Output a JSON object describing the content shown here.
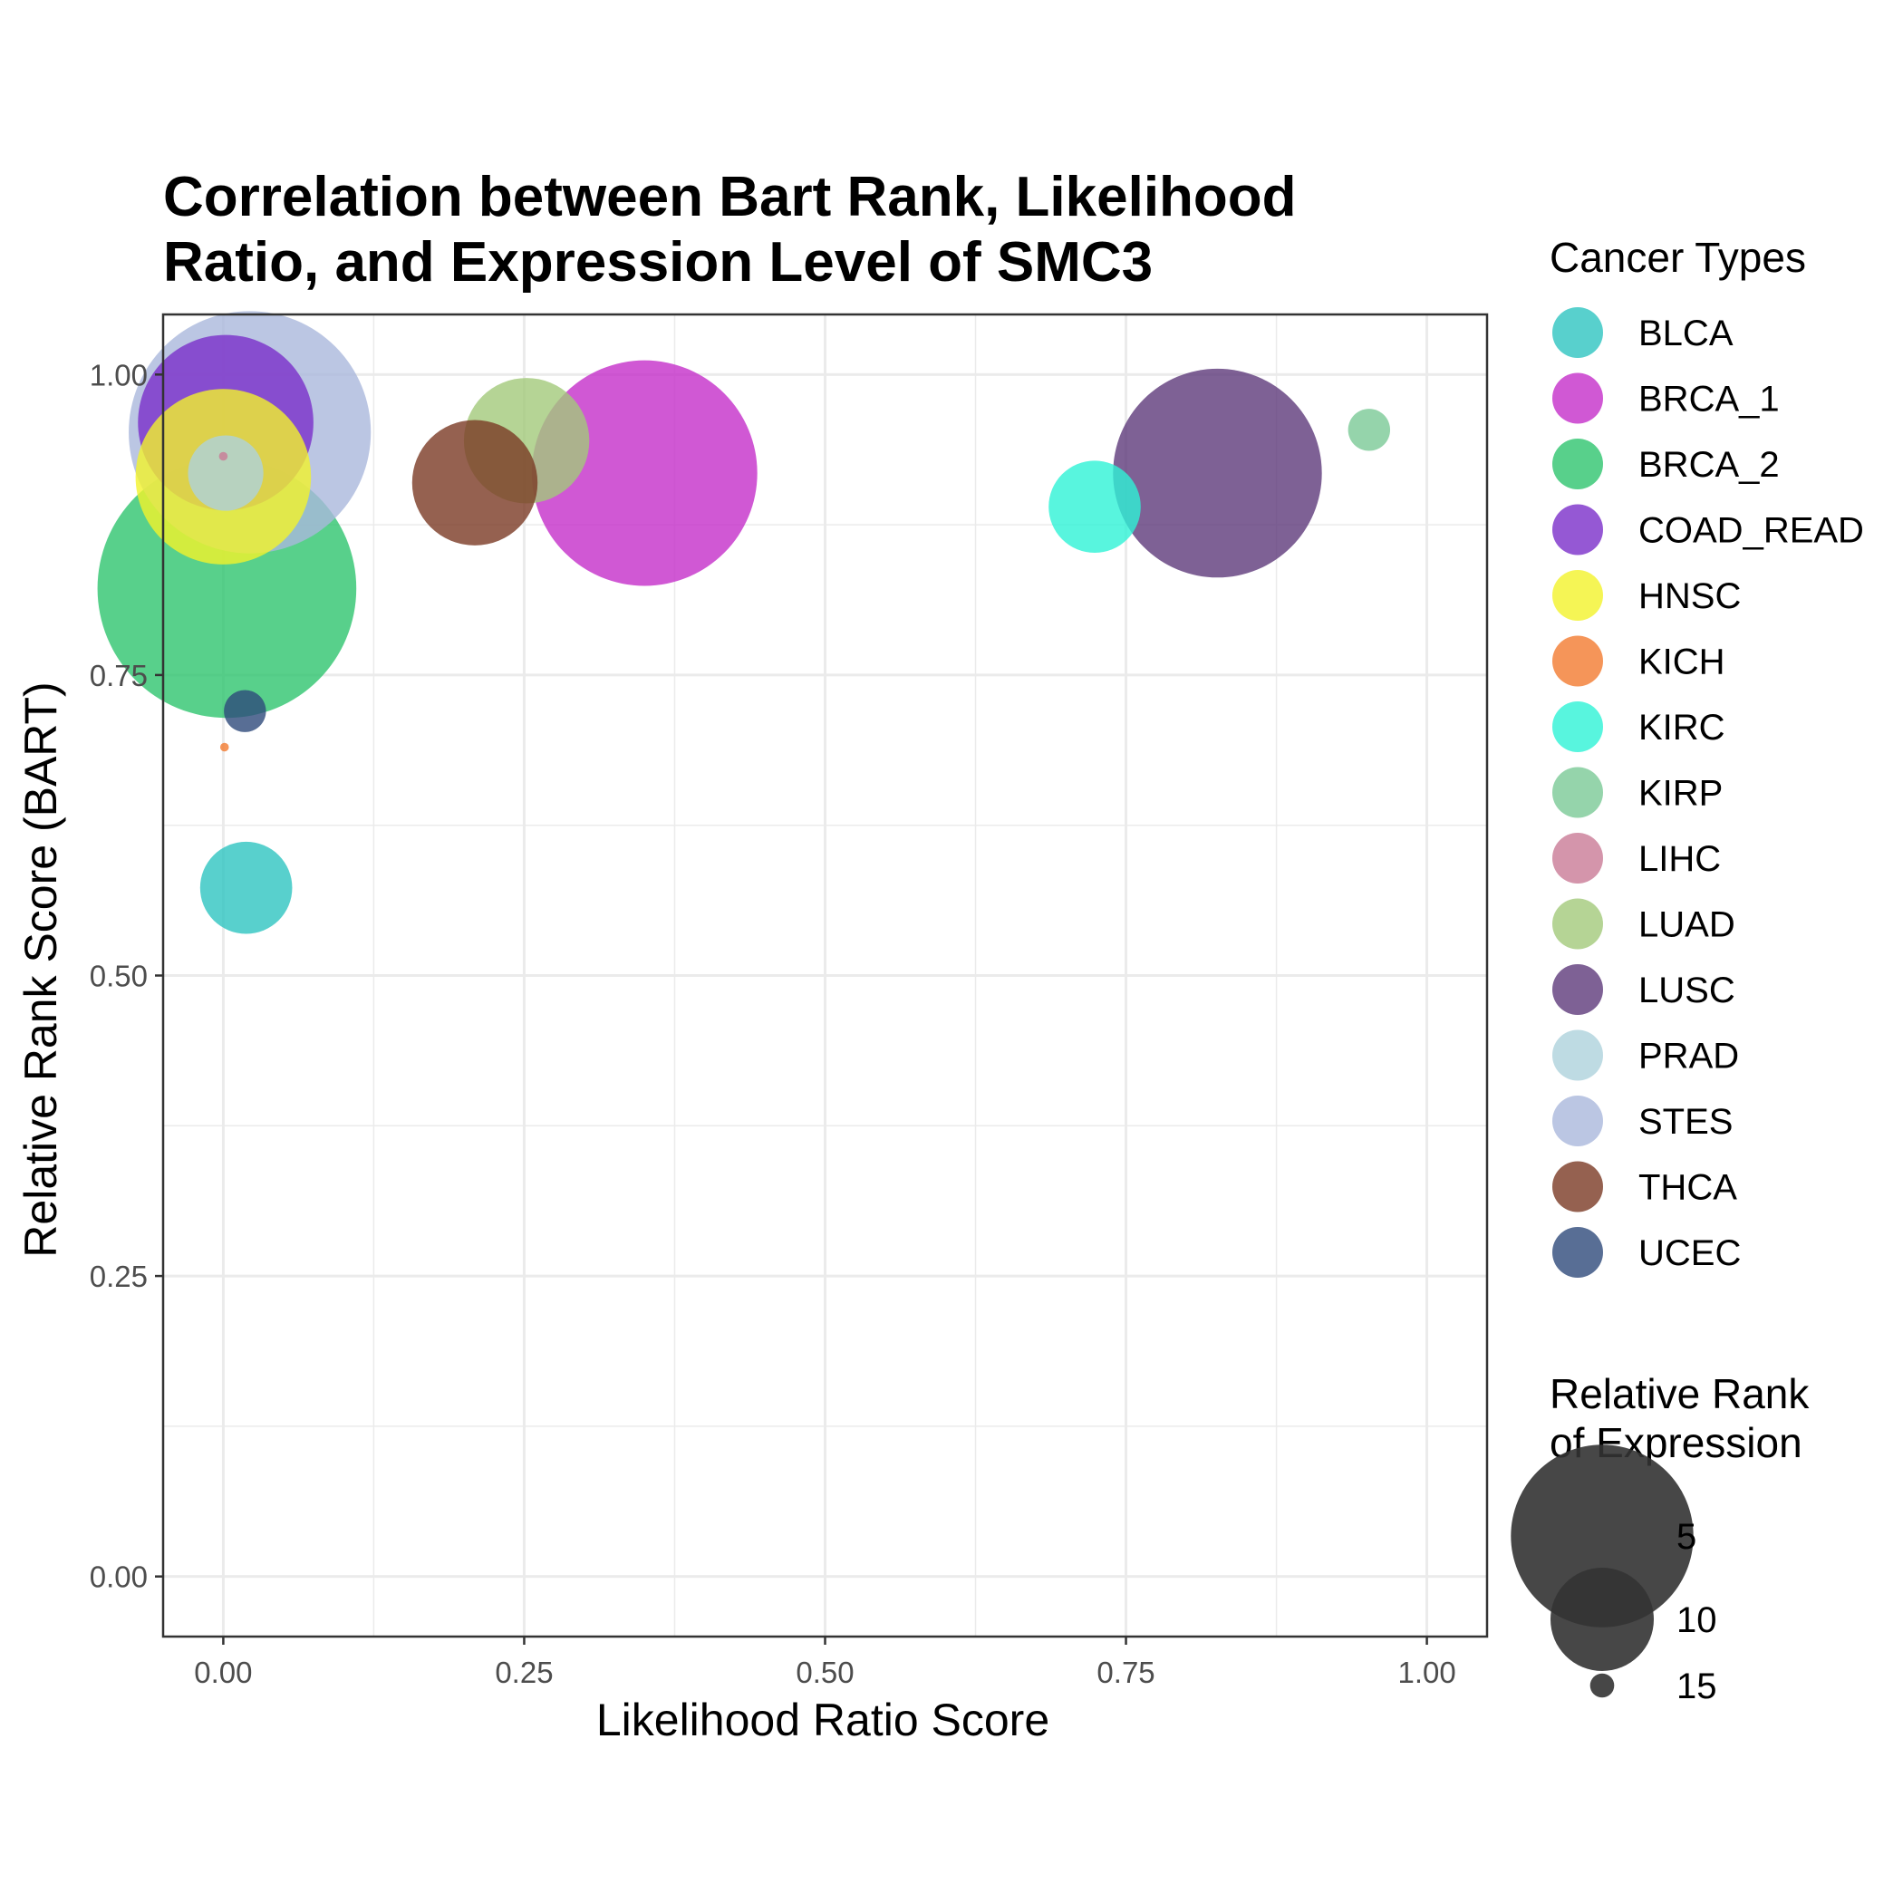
{
  "chart_data": {
    "type": "scatter",
    "title_lines": [
      "Correlation between Bart Rank, Likelihood",
      "Ratio, and Expression Level of SMC3"
    ],
    "xlabel": "Likelihood Ratio Score",
    "ylabel": "Relative Rank Score (BART)",
    "xlim": [
      -0.05,
      1.05
    ],
    "ylim": [
      -0.05,
      1.05
    ],
    "x_ticks": [
      "0.00",
      "0.25",
      "0.50",
      "0.75",
      "1.00"
    ],
    "y_ticks": [
      "0.00",
      "0.25",
      "0.50",
      "0.75",
      "1.00"
    ],
    "grid": true,
    "legend_placement": "right",
    "color_legend_title": "Cancer Types",
    "size_legend_title_lines": [
      "Relative Rank",
      "of Expression"
    ],
    "size_legend": [
      {
        "label": "5",
        "value": 5
      },
      {
        "label": "10",
        "value": 10
      },
      {
        "label": "15",
        "value": 15
      }
    ],
    "series": [
      {
        "name": "BLCA",
        "color": "#2ec4c0",
        "x": 0.019,
        "y": 0.573,
        "size": 11
      },
      {
        "name": "BRCA_1",
        "color": "#c42ec9",
        "x": 0.35,
        "y": 0.918,
        "size": 3
      },
      {
        "name": "BRCA_2",
        "color": "#2ec46e",
        "x": 0.003,
        "y": 0.822,
        "size": 1
      },
      {
        "name": "COAD_READ",
        "color": "#7a2ec9",
        "x": 0.002,
        "y": 0.96,
        "size": 6
      },
      {
        "name": "HNSC",
        "color": "#f2f22a",
        "x": 0.0,
        "y": 0.915,
        "size": 6
      },
      {
        "name": "KICH",
        "color": "#f27a30",
        "x": 0.001,
        "y": 0.69,
        "size": 16
      },
      {
        "name": "KIRC",
        "color": "#2ef2d6",
        "x": 0.724,
        "y": 0.89,
        "size": 11
      },
      {
        "name": "KIRP",
        "color": "#7ac996",
        "x": 0.952,
        "y": 0.954,
        "size": 14
      },
      {
        "name": "LIHC",
        "color": "#c97a96",
        "x": 0.0,
        "y": 0.932,
        "size": 16
      },
      {
        "name": "LUAD",
        "color": "#a2c97a",
        "x": 0.252,
        "y": 0.945,
        "size": 9
      },
      {
        "name": "LUSC",
        "color": "#5e3a7a",
        "x": 0.826,
        "y": 0.918,
        "size": 4
      },
      {
        "name": "PRAD",
        "color": "#aed2dc",
        "x": 0.002,
        "y": 0.918,
        "size": 12
      },
      {
        "name": "STES",
        "color": "#aab8dc",
        "x": 0.022,
        "y": 0.952,
        "size": 2
      },
      {
        "name": "THCA",
        "color": "#7a3a24",
        "x": 0.209,
        "y": 0.91,
        "size": 9
      },
      {
        "name": "UCEC",
        "color": "#2e4a7a",
        "x": 0.018,
        "y": 0.72,
        "size": 14
      }
    ]
  }
}
